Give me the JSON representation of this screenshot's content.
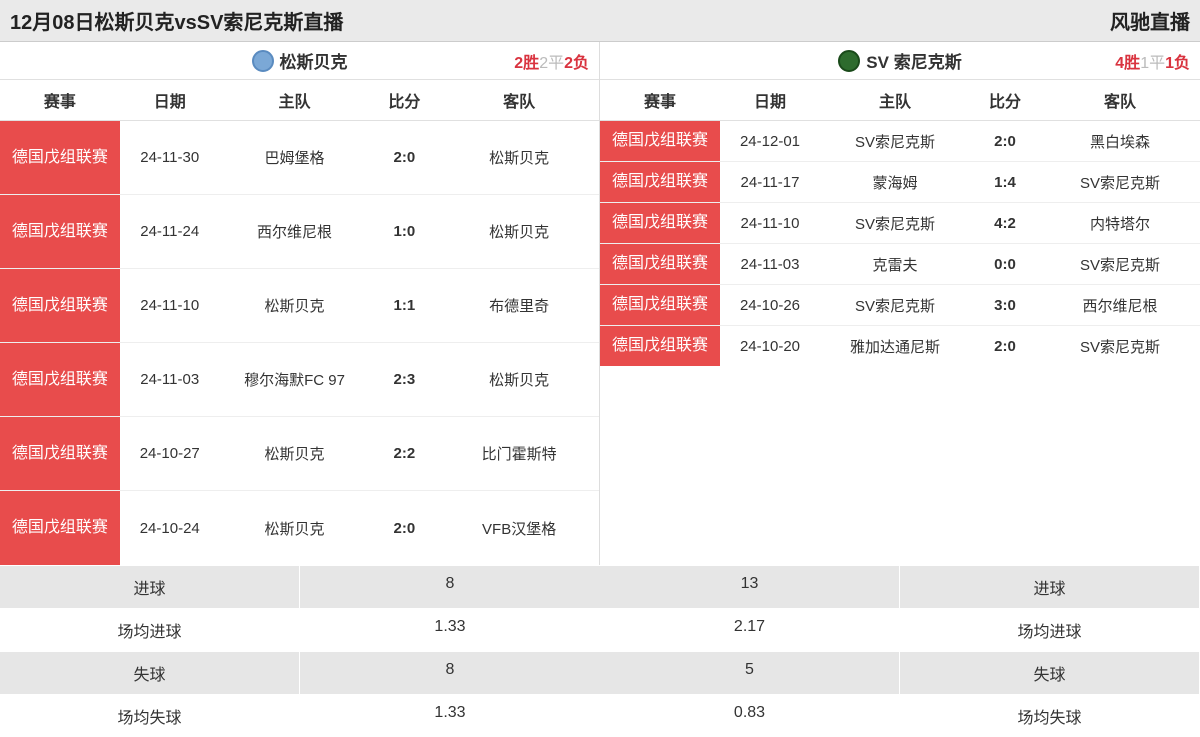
{
  "header": {
    "title": "12月08日松斯贝克vsSV索尼克斯直播",
    "brand": "风驰直播"
  },
  "columns": {
    "comp": "赛事",
    "date": "日期",
    "home": "主队",
    "score": "比分",
    "away": "客队"
  },
  "left": {
    "team_name": "松斯贝克",
    "wins": "2胜",
    "draws": "2平",
    "losses": "2负",
    "matches": [
      {
        "comp": "德国戊组联赛",
        "date": "24-11-30",
        "home": "巴姆堡格",
        "score": "2:0",
        "away": "松斯贝克"
      },
      {
        "comp": "德国戊组联赛",
        "date": "24-11-24",
        "home": "西尔维尼根",
        "score": "1:0",
        "away": "松斯贝克"
      },
      {
        "comp": "德国戊组联赛",
        "date": "24-11-10",
        "home": "松斯贝克",
        "score": "1:1",
        "away": "布德里奇"
      },
      {
        "comp": "德国戊组联赛",
        "date": "24-11-03",
        "home": "穆尔海默FC 97",
        "score": "2:3",
        "away": "松斯贝克"
      },
      {
        "comp": "德国戊组联赛",
        "date": "24-10-27",
        "home": "松斯贝克",
        "score": "2:2",
        "away": "比门霍斯特"
      },
      {
        "comp": "德国戊组联赛",
        "date": "24-10-24",
        "home": "松斯贝克",
        "score": "2:0",
        "away": "VFB汉堡格"
      }
    ]
  },
  "right": {
    "team_name": "SV 索尼克斯",
    "wins": "4胜",
    "draws": "1平",
    "losses": "1负",
    "matches": [
      {
        "comp": "德国戊组联赛",
        "date": "24-12-01",
        "home": "SV索尼克斯",
        "score": "2:0",
        "away": "黑白埃森"
      },
      {
        "comp": "德国戊组联赛",
        "date": "24-11-17",
        "home": "蒙海姆",
        "score": "1:4",
        "away": "SV索尼克斯"
      },
      {
        "comp": "德国戊组联赛",
        "date": "24-11-10",
        "home": "SV索尼克斯",
        "score": "4:2",
        "away": "内特塔尔"
      },
      {
        "comp": "德国戊组联赛",
        "date": "24-11-03",
        "home": "克雷夫",
        "score": "0:0",
        "away": "SV索尼克斯"
      },
      {
        "comp": "德国戊组联赛",
        "date": "24-10-26",
        "home": "SV索尼克斯",
        "score": "3:0",
        "away": "西尔维尼根"
      },
      {
        "comp": "德国戊组联赛",
        "date": "24-10-20",
        "home": "雅加达通尼斯",
        "score": "2:0",
        "away": "SV索尼克斯"
      }
    ]
  },
  "stats": {
    "labels": {
      "goals": "进球",
      "avg_goals": "场均进球",
      "conceded": "失球",
      "avg_conceded": "场均失球"
    },
    "left": {
      "goals": "8",
      "avg_goals": "1.33",
      "conceded": "8",
      "avg_conceded": "1.33"
    },
    "right": {
      "goals": "13",
      "avg_goals": "2.17",
      "conceded": "5",
      "avg_conceded": "0.83"
    }
  },
  "colors": {
    "comp_bg": "#e84c4c",
    "header_bg": "#eaeaea",
    "stat_bg": "#e6e6e6",
    "win_color": "#d9333f",
    "draw_color": "#bbbbbb"
  }
}
